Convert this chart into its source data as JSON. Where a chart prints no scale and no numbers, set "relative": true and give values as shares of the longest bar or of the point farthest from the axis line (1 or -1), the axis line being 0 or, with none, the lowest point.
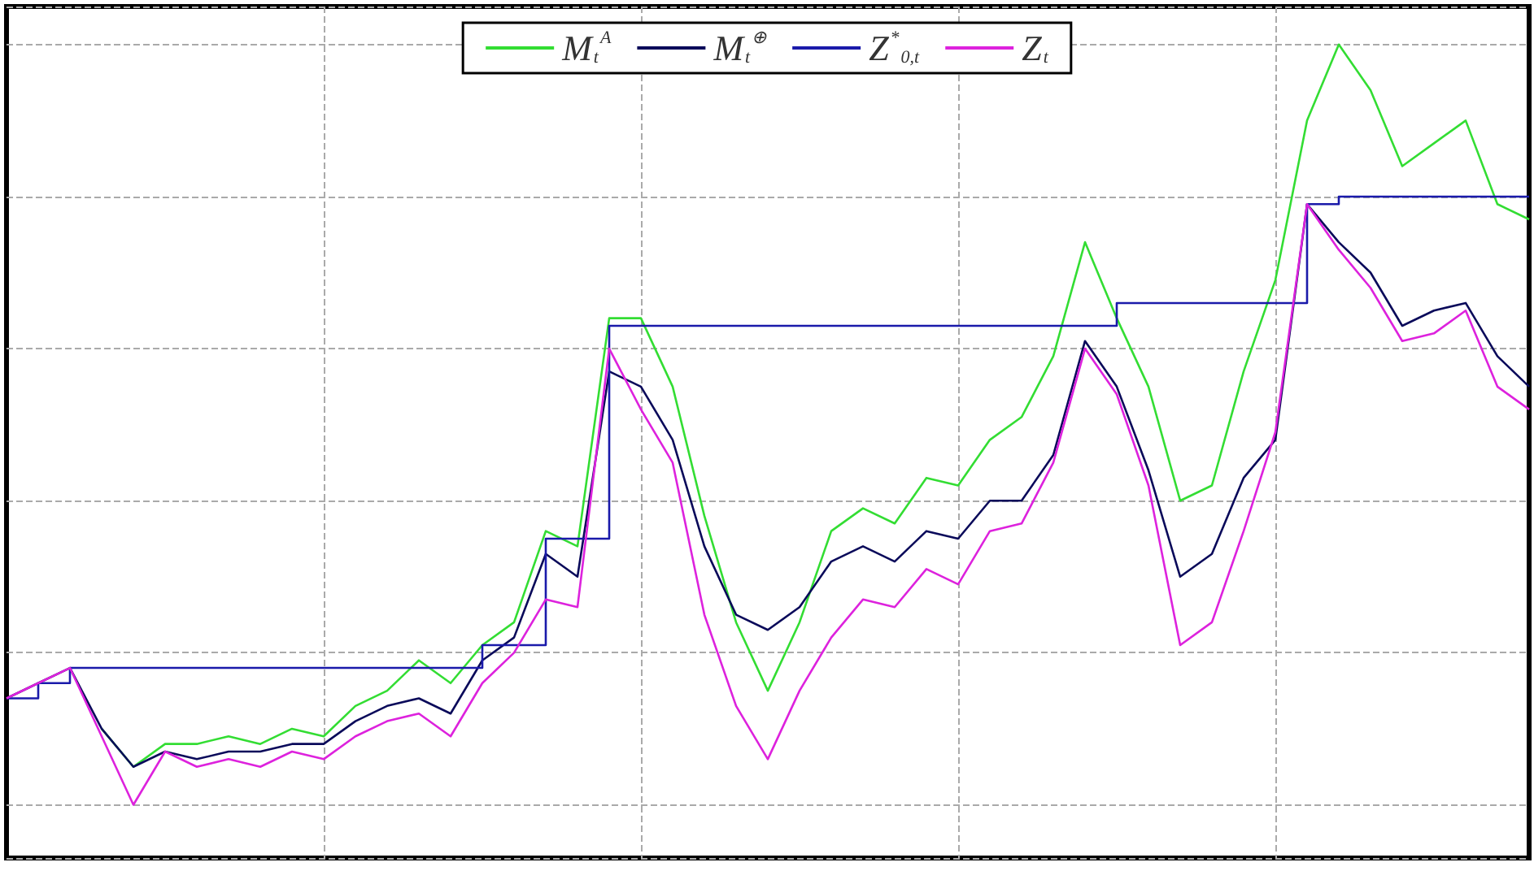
{
  "chart_data": {
    "type": "line",
    "relative": true,
    "grid": true,
    "legend": "top",
    "marker": "none",
    "categories": [
      null,
      null,
      null,
      null,
      null,
      null,
      null,
      null,
      null,
      null,
      null,
      null,
      null,
      null,
      null,
      null,
      null,
      null,
      null,
      null,
      null,
      null,
      null,
      null,
      null,
      null,
      null,
      null,
      null,
      null,
      null,
      null,
      null,
      null,
      null,
      null,
      null,
      null,
      null,
      null,
      null,
      null,
      null,
      null,
      null,
      null,
      null,
      null,
      null
    ],
    "series": [
      {
        "name": "M$_{t}$$^{A}$",
        "color": "#33dd33",
        "values": [
          null,
          null,
          null,
          0.1,
          0.05,
          0.08,
          0.08,
          0.09,
          0.08,
          0.1,
          0.09,
          0.13,
          0.15,
          0.19,
          0.16,
          0.21,
          0.24,
          0.36,
          0.34,
          0.64,
          0.64,
          0.55,
          0.38,
          0.24,
          0.15,
          0.24,
          0.36,
          0.39,
          0.37,
          0.43,
          0.42,
          0.48,
          0.51,
          0.59,
          0.74,
          0.64,
          0.55,
          0.4,
          0.42,
          0.57,
          0.69,
          0.9,
          1,
          0.94,
          0.84,
          0.87,
          0.9,
          0.79,
          0.77
        ]
      },
      {
        "name": "M$_{t}$$^{⊕}$",
        "color": "#0a0a5a",
        "values": [
          0.14,
          0.16,
          0.18,
          0.1,
          0.05,
          0.07,
          0.06,
          0.07,
          0.07,
          0.08,
          0.08,
          0.11,
          0.13,
          0.14,
          0.12,
          0.19,
          0.22,
          0.33,
          0.3,
          0.57,
          0.55,
          0.48,
          0.34,
          0.25,
          0.23,
          0.26,
          0.32,
          0.34,
          0.32,
          0.36,
          0.35,
          0.4,
          0.4,
          0.46,
          0.61,
          0.55,
          0.44,
          0.3,
          0.33,
          0.43,
          0.48,
          0.79,
          0.74,
          0.7,
          0.63,
          0.65,
          0.66,
          0.59,
          0.55
        ]
      },
      {
        "name": "Z$^{*}$$_{0,t}$",
        "color": "#1a1aaa",
        "type": "step",
        "values": [
          0.14,
          0.16,
          0.18,
          0.18,
          0.18,
          0.18,
          0.18,
          0.18,
          0.18,
          0.18,
          0.18,
          0.18,
          0.18,
          0.18,
          0.18,
          0.21,
          0.21,
          0.35,
          0.35,
          0.63,
          0.63,
          0.63,
          0.63,
          0.63,
          0.63,
          0.63,
          0.63,
          0.63,
          0.63,
          0.63,
          0.63,
          0.63,
          0.63,
          0.63,
          0.63,
          0.66,
          0.66,
          0.66,
          0.66,
          0.66,
          0.66,
          0.79,
          0.8,
          0.8,
          0.8,
          0.8,
          0.8,
          0.8,
          0.8
        ]
      },
      {
        "name": "Z$_{t}$",
        "color": "#dd22dd",
        "values": [
          0.14,
          0.16,
          0.18,
          0.09,
          0,
          0.07,
          0.05,
          0.06,
          0.05,
          0.07,
          0.06,
          0.09,
          0.11,
          0.12,
          0.09,
          0.16,
          0.2,
          0.27,
          0.26,
          0.6,
          0.52,
          0.45,
          0.25,
          0.13,
          0.06,
          0.15,
          0.22,
          0.27,
          0.26,
          0.31,
          0.29,
          0.36,
          0.37,
          0.45,
          0.6,
          0.54,
          0.42,
          0.21,
          0.24,
          0.36,
          0.49,
          0.79,
          0.73,
          0.68,
          0.61,
          0.62,
          0.65,
          0.55,
          0.52
        ]
      }
    ]
  }
}
